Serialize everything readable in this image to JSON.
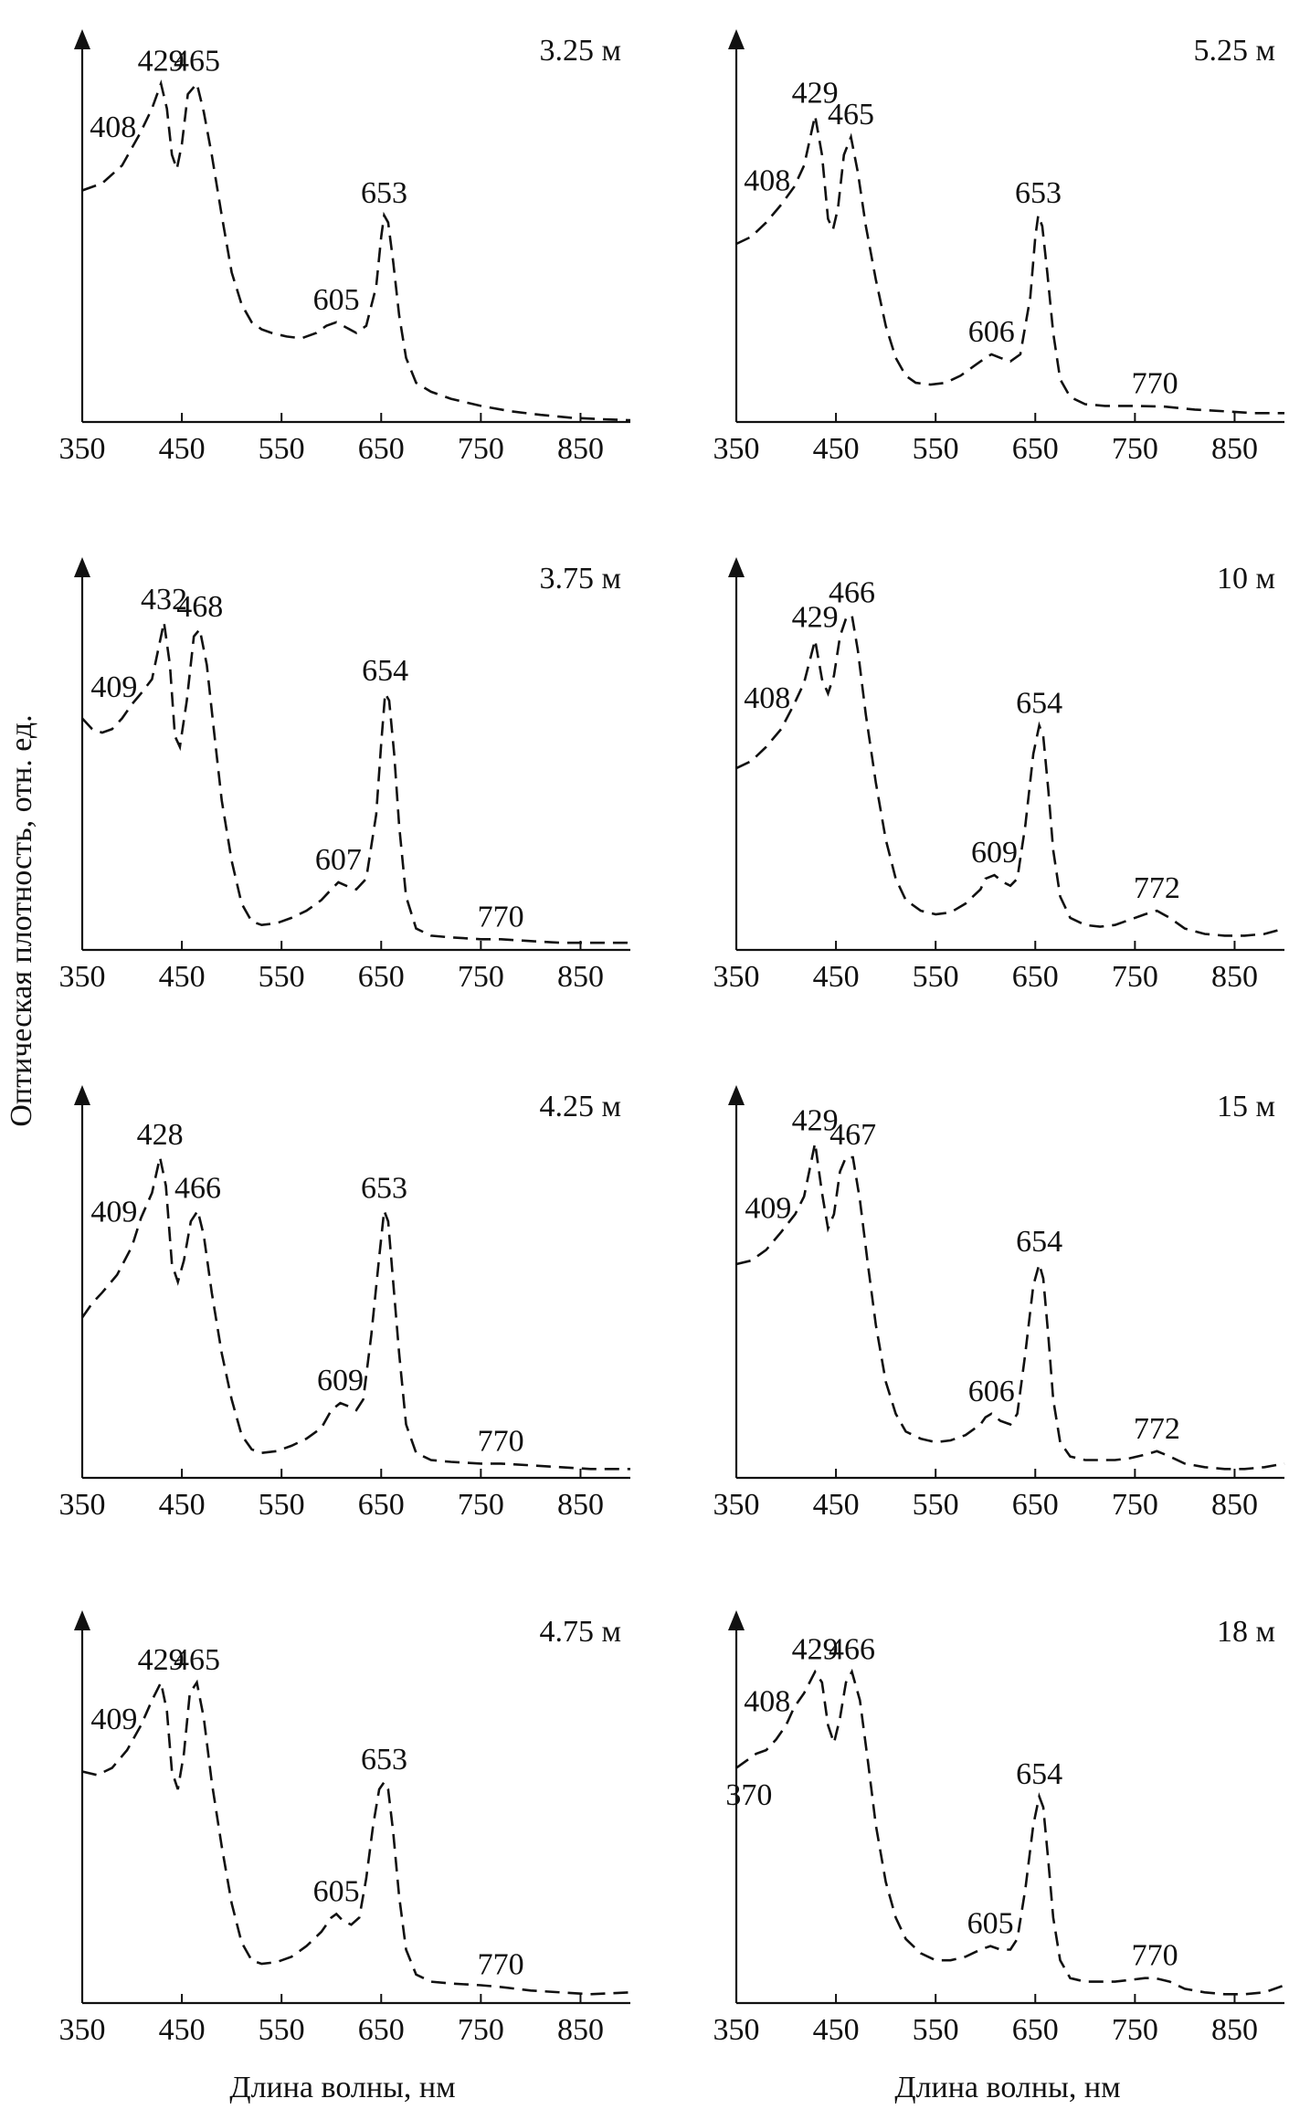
{
  "figure": {
    "y_axis_title": "Оптическая плотность, отн. ед.",
    "x_axis_title_left": "Длина волны, нм",
    "x_axis_title_right": "Длина волны, нм"
  },
  "chart_data": [
    {
      "type": "line",
      "title": "3.25 м",
      "xlim": [
        350,
        900
      ],
      "ylim": [
        0,
        1
      ],
      "xticks": [
        "350",
        "450",
        "550",
        "650",
        "750",
        "850"
      ],
      "x": [
        350,
        370,
        390,
        400,
        408,
        420,
        429,
        435,
        440,
        445,
        450,
        456,
        465,
        472,
        480,
        490,
        500,
        510,
        520,
        530,
        540,
        555,
        570,
        585,
        595,
        605,
        615,
        625,
        635,
        645,
        650,
        653,
        657,
        662,
        668,
        675,
        685,
        700,
        720,
        750,
        780,
        810,
        840,
        870,
        900
      ],
      "y": [
        0.65,
        0.67,
        0.72,
        0.77,
        0.81,
        0.88,
        0.95,
        0.88,
        0.75,
        0.71,
        0.78,
        0.92,
        0.95,
        0.87,
        0.75,
        0.58,
        0.42,
        0.33,
        0.28,
        0.26,
        0.25,
        0.24,
        0.235,
        0.25,
        0.27,
        0.28,
        0.265,
        0.25,
        0.27,
        0.38,
        0.52,
        0.58,
        0.56,
        0.45,
        0.3,
        0.18,
        0.11,
        0.085,
        0.065,
        0.045,
        0.03,
        0.02,
        0.012,
        0.008,
        0.005
      ],
      "peaks": [
        {
          "label": "408",
          "x": 408,
          "y": 0.81
        },
        {
          "label": "429",
          "x": 429,
          "y": 0.95
        },
        {
          "label": "465",
          "x": 465,
          "y": 0.95
        },
        {
          "label": "605",
          "x": 605,
          "y": 0.28
        },
        {
          "label": "653",
          "x": 653,
          "y": 0.58
        }
      ]
    },
    {
      "type": "line",
      "title": "5.25 м",
      "xlim": [
        350,
        900
      ],
      "ylim": [
        0,
        1
      ],
      "xticks": [
        "350",
        "450",
        "550",
        "650",
        "750",
        "850"
      ],
      "x": [
        350,
        365,
        380,
        395,
        408,
        418,
        429,
        436,
        442,
        447,
        452,
        458,
        465,
        472,
        480,
        490,
        500,
        510,
        520,
        530,
        545,
        560,
        575,
        590,
        600,
        606,
        615,
        625,
        635,
        645,
        650,
        653,
        657,
        662,
        668,
        675,
        685,
        700,
        720,
        750,
        780,
        810,
        840,
        870,
        900
      ],
      "y": [
        0.5,
        0.52,
        0.56,
        0.61,
        0.66,
        0.72,
        0.86,
        0.75,
        0.57,
        0.54,
        0.6,
        0.75,
        0.8,
        0.7,
        0.55,
        0.4,
        0.27,
        0.18,
        0.13,
        0.11,
        0.105,
        0.11,
        0.13,
        0.16,
        0.18,
        0.19,
        0.18,
        0.17,
        0.19,
        0.35,
        0.52,
        0.58,
        0.55,
        0.42,
        0.25,
        0.12,
        0.07,
        0.05,
        0.045,
        0.045,
        0.043,
        0.035,
        0.03,
        0.025,
        0.025
      ],
      "peaks": [
        {
          "label": "408",
          "x": 408,
          "y": 0.66
        },
        {
          "label": "429",
          "x": 429,
          "y": 0.86
        },
        {
          "label": "465",
          "x": 465,
          "y": 0.8
        },
        {
          "label": "606",
          "x": 606,
          "y": 0.19
        },
        {
          "label": "653",
          "x": 653,
          "y": 0.58
        },
        {
          "label": "770",
          "x": 770,
          "y": 0.045
        }
      ]
    },
    {
      "type": "line",
      "title": "3.75 м",
      "xlim": [
        350,
        900
      ],
      "ylim": [
        0,
        1
      ],
      "xticks": [
        "350",
        "450",
        "550",
        "650",
        "750",
        "850"
      ],
      "x": [
        350,
        360,
        370,
        380,
        390,
        400,
        409,
        420,
        432,
        438,
        443,
        448,
        455,
        462,
        468,
        475,
        482,
        490,
        500,
        510,
        520,
        530,
        545,
        560,
        575,
        590,
        600,
        607,
        615,
        625,
        635,
        645,
        650,
        654,
        658,
        663,
        668,
        675,
        685,
        700,
        720,
        750,
        770,
        800,
        830,
        860,
        900
      ],
      "y": [
        0.65,
        0.62,
        0.61,
        0.62,
        0.65,
        0.69,
        0.72,
        0.76,
        0.92,
        0.8,
        0.6,
        0.57,
        0.7,
        0.88,
        0.9,
        0.8,
        0.62,
        0.42,
        0.25,
        0.13,
        0.08,
        0.07,
        0.075,
        0.09,
        0.11,
        0.14,
        0.17,
        0.19,
        0.18,
        0.17,
        0.2,
        0.38,
        0.58,
        0.72,
        0.7,
        0.55,
        0.35,
        0.15,
        0.06,
        0.04,
        0.035,
        0.03,
        0.03,
        0.025,
        0.02,
        0.02,
        0.02
      ],
      "peaks": [
        {
          "label": "409",
          "x": 409,
          "y": 0.72
        },
        {
          "label": "432",
          "x": 432,
          "y": 0.92
        },
        {
          "label": "468",
          "x": 468,
          "y": 0.9
        },
        {
          "label": "607",
          "x": 607,
          "y": 0.19
        },
        {
          "label": "654",
          "x": 654,
          "y": 0.72
        },
        {
          "label": "770",
          "x": 770,
          "y": 0.03
        }
      ]
    },
    {
      "type": "line",
      "title": "10 м",
      "xlim": [
        350,
        900
      ],
      "ylim": [
        0,
        1
      ],
      "xticks": [
        "350",
        "450",
        "550",
        "650",
        "750",
        "850"
      ],
      "x": [
        350,
        365,
        380,
        395,
        408,
        418,
        429,
        436,
        442,
        448,
        454,
        460,
        466,
        472,
        480,
        490,
        500,
        510,
        520,
        535,
        550,
        565,
        580,
        595,
        600,
        609,
        618,
        625,
        632,
        640,
        648,
        654,
        658,
        663,
        668,
        675,
        685,
        700,
        715,
        730,
        745,
        760,
        772,
        785,
        800,
        820,
        840,
        860,
        880,
        900
      ],
      "y": [
        0.51,
        0.53,
        0.57,
        0.62,
        0.69,
        0.75,
        0.87,
        0.76,
        0.72,
        0.77,
        0.88,
        0.93,
        0.94,
        0.84,
        0.66,
        0.47,
        0.31,
        0.2,
        0.14,
        0.11,
        0.1,
        0.105,
        0.13,
        0.17,
        0.2,
        0.21,
        0.19,
        0.18,
        0.2,
        0.35,
        0.55,
        0.63,
        0.6,
        0.45,
        0.28,
        0.15,
        0.09,
        0.07,
        0.065,
        0.07,
        0.085,
        0.1,
        0.11,
        0.09,
        0.06,
        0.045,
        0.04,
        0.04,
        0.045,
        0.06
      ],
      "peaks": [
        {
          "label": "408",
          "x": 408,
          "y": 0.69
        },
        {
          "label": "429",
          "x": 429,
          "y": 0.87
        },
        {
          "label": "466",
          "x": 466,
          "y": 0.94
        },
        {
          "label": "609",
          "x": 609,
          "y": 0.21
        },
        {
          "label": "654",
          "x": 654,
          "y": 0.63
        },
        {
          "label": "772",
          "x": 772,
          "y": 0.11
        }
      ]
    },
    {
      "type": "line",
      "title": "4.25 м",
      "xlim": [
        350,
        900
      ],
      "ylim": [
        0,
        1
      ],
      "xticks": [
        "350",
        "450",
        "550",
        "650",
        "750",
        "850"
      ],
      "x": [
        350,
        360,
        370,
        385,
        400,
        409,
        420,
        428,
        434,
        440,
        446,
        452,
        459,
        466,
        472,
        480,
        490,
        500,
        510,
        520,
        530,
        545,
        560,
        575,
        590,
        600,
        609,
        618,
        625,
        632,
        640,
        648,
        653,
        657,
        662,
        668,
        675,
        685,
        700,
        720,
        750,
        770,
        800,
        830,
        860,
        900
      ],
      "y": [
        0.45,
        0.49,
        0.52,
        0.57,
        0.65,
        0.73,
        0.8,
        0.9,
        0.82,
        0.6,
        0.55,
        0.61,
        0.72,
        0.75,
        0.68,
        0.52,
        0.35,
        0.22,
        0.12,
        0.08,
        0.07,
        0.075,
        0.09,
        0.11,
        0.14,
        0.19,
        0.21,
        0.2,
        0.19,
        0.22,
        0.4,
        0.62,
        0.75,
        0.72,
        0.55,
        0.35,
        0.15,
        0.07,
        0.05,
        0.045,
        0.04,
        0.04,
        0.035,
        0.03,
        0.025,
        0.025
      ],
      "peaks": [
        {
          "label": "409",
          "x": 409,
          "y": 0.73
        },
        {
          "label": "428",
          "x": 428,
          "y": 0.9
        },
        {
          "label": "466",
          "x": 466,
          "y": 0.75
        },
        {
          "label": "609",
          "x": 609,
          "y": 0.21
        },
        {
          "label": "653",
          "x": 653,
          "y": 0.75
        },
        {
          "label": "770",
          "x": 770,
          "y": 0.04
        }
      ]
    },
    {
      "type": "line",
      "title": "15 м",
      "xlim": [
        350,
        900
      ],
      "ylim": [
        0,
        1
      ],
      "xticks": [
        "350",
        "450",
        "550",
        "650",
        "750",
        "850"
      ],
      "x": [
        350,
        365,
        380,
        395,
        409,
        418,
        429,
        436,
        442,
        448,
        454,
        460,
        467,
        474,
        482,
        490,
        500,
        510,
        520,
        535,
        550,
        565,
        580,
        595,
        600,
        606,
        615,
        625,
        632,
        640,
        648,
        654,
        658,
        663,
        668,
        675,
        685,
        700,
        715,
        730,
        745,
        760,
        772,
        785,
        800,
        820,
        840,
        860,
        880,
        900
      ],
      "y": [
        0.6,
        0.61,
        0.64,
        0.69,
        0.74,
        0.79,
        0.94,
        0.8,
        0.7,
        0.74,
        0.86,
        0.9,
        0.9,
        0.78,
        0.6,
        0.43,
        0.27,
        0.18,
        0.13,
        0.11,
        0.1,
        0.105,
        0.12,
        0.15,
        0.17,
        0.18,
        0.16,
        0.15,
        0.18,
        0.35,
        0.54,
        0.6,
        0.56,
        0.4,
        0.22,
        0.1,
        0.06,
        0.05,
        0.05,
        0.05,
        0.055,
        0.065,
        0.075,
        0.06,
        0.04,
        0.03,
        0.025,
        0.025,
        0.03,
        0.04
      ],
      "peaks": [
        {
          "label": "409",
          "x": 409,
          "y": 0.74
        },
        {
          "label": "429",
          "x": 429,
          "y": 0.94
        },
        {
          "label": "467",
          "x": 467,
          "y": 0.9
        },
        {
          "label": "606",
          "x": 606,
          "y": 0.18
        },
        {
          "label": "654",
          "x": 654,
          "y": 0.6
        },
        {
          "label": "772",
          "x": 772,
          "y": 0.075
        }
      ]
    },
    {
      "type": "line",
      "title": "4.75 м",
      "xlim": [
        350,
        900
      ],
      "ylim": [
        0,
        1
      ],
      "xticks": [
        "350",
        "450",
        "550",
        "650",
        "750",
        "850"
      ],
      "x": [
        350,
        365,
        380,
        395,
        409,
        420,
        429,
        435,
        440,
        446,
        452,
        458,
        465,
        472,
        480,
        490,
        500,
        510,
        520,
        530,
        545,
        560,
        575,
        590,
        600,
        605,
        612,
        620,
        628,
        635,
        642,
        648,
        653,
        657,
        662,
        668,
        675,
        685,
        700,
        720,
        750,
        770,
        800,
        830,
        860,
        900
      ],
      "y": [
        0.65,
        0.64,
        0.66,
        0.71,
        0.78,
        0.85,
        0.9,
        0.82,
        0.65,
        0.6,
        0.7,
        0.87,
        0.9,
        0.8,
        0.62,
        0.44,
        0.28,
        0.17,
        0.12,
        0.11,
        0.115,
        0.13,
        0.16,
        0.2,
        0.24,
        0.25,
        0.23,
        0.22,
        0.24,
        0.35,
        0.5,
        0.6,
        0.62,
        0.6,
        0.48,
        0.3,
        0.15,
        0.08,
        0.06,
        0.055,
        0.05,
        0.045,
        0.035,
        0.03,
        0.025,
        0.03
      ],
      "peaks": [
        {
          "label": "409",
          "x": 409,
          "y": 0.78
        },
        {
          "label": "429",
          "x": 429,
          "y": 0.9
        },
        {
          "label": "465",
          "x": 465,
          "y": 0.9
        },
        {
          "label": "605",
          "x": 605,
          "y": 0.25
        },
        {
          "label": "653",
          "x": 653,
          "y": 0.62
        },
        {
          "label": "770",
          "x": 770,
          "y": 0.045
        }
      ]
    },
    {
      "type": "line",
      "title": "18 м",
      "xlim": [
        350,
        900
      ],
      "ylim": [
        0,
        1
      ],
      "xticks": [
        "350",
        "450",
        "550",
        "650",
        "750",
        "850"
      ],
      "x": [
        350,
        360,
        370,
        380,
        390,
        400,
        408,
        418,
        429,
        436,
        442,
        448,
        454,
        460,
        466,
        474,
        482,
        490,
        500,
        510,
        520,
        535,
        550,
        565,
        580,
        595,
        605,
        615,
        625,
        632,
        640,
        648,
        654,
        658,
        663,
        668,
        675,
        685,
        700,
        715,
        730,
        745,
        760,
        770,
        785,
        800,
        820,
        840,
        860,
        880,
        900
      ],
      "y": [
        0.66,
        0.68,
        0.7,
        0.71,
        0.74,
        0.78,
        0.83,
        0.87,
        0.93,
        0.9,
        0.78,
        0.73,
        0.8,
        0.9,
        0.93,
        0.85,
        0.68,
        0.5,
        0.34,
        0.24,
        0.18,
        0.14,
        0.12,
        0.12,
        0.13,
        0.15,
        0.16,
        0.15,
        0.15,
        0.18,
        0.32,
        0.5,
        0.58,
        0.55,
        0.4,
        0.24,
        0.12,
        0.07,
        0.06,
        0.06,
        0.06,
        0.065,
        0.07,
        0.07,
        0.06,
        0.04,
        0.03,
        0.025,
        0.025,
        0.03,
        0.05
      ],
      "peaks": [
        {
          "label": "370",
          "x": 370,
          "y": 0.7,
          "below": true
        },
        {
          "label": "408",
          "x": 408,
          "y": 0.83
        },
        {
          "label": "429",
          "x": 429,
          "y": 0.93
        },
        {
          "label": "466",
          "x": 466,
          "y": 0.93
        },
        {
          "label": "605",
          "x": 605,
          "y": 0.16
        },
        {
          "label": "654",
          "x": 654,
          "y": 0.58
        },
        {
          "label": "770",
          "x": 770,
          "y": 0.07
        }
      ]
    }
  ]
}
